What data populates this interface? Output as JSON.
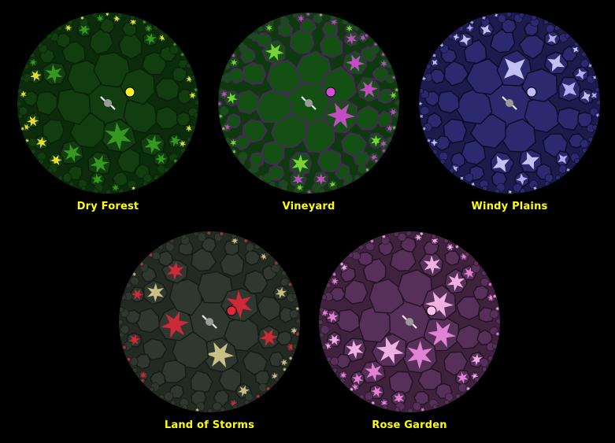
{
  "colors": {
    "background": "#000000",
    "caption": "#ffff00"
  },
  "lands": [
    {
      "name": "Dry Forest",
      "fill": "#0b2c0a",
      "cell": "#123d10",
      "edge": "#082008",
      "accent": "#3aa321",
      "feature": "#ffef2e",
      "icons": [
        "star-burst-icon",
        "player-icon",
        "ivy-monster-icon"
      ]
    },
    {
      "name": "Vineyard",
      "fill": "#0d3a0d",
      "cell": "#145014",
      "edge": "#5c1a73",
      "accent": "#86e03a",
      "feature": "#d64bd8",
      "icons": [
        "vine-icon",
        "player-icon",
        "skull-monster-icon"
      ]
    },
    {
      "name": "Windy Plains",
      "fill": "#1c1b4d",
      "cell": "#2b2a6f",
      "edge": "#0c0b22",
      "accent": "#d4d2ff",
      "feature": "#bfbcff",
      "icons": [
        "whirlwind-icon",
        "player-icon",
        "wind-monster-icon"
      ]
    },
    {
      "name": "Land of Storms",
      "fill": "#232a22",
      "cell": "#2f372e",
      "edge": "#141a14",
      "accent": "#d9cf91",
      "feature": "#e0283a",
      "icons": [
        "storm-star-icon",
        "player-icon",
        "charged-ring-icon"
      ]
    },
    {
      "name": "Rose Garden",
      "fill": "#40223f",
      "cell": "#57305a",
      "edge": "#221222",
      "accent": "#f08ddf",
      "feature": "#ffc0f0",
      "icons": [
        "rose-icon",
        "player-icon",
        "thorn-monster-icon"
      ]
    }
  ]
}
